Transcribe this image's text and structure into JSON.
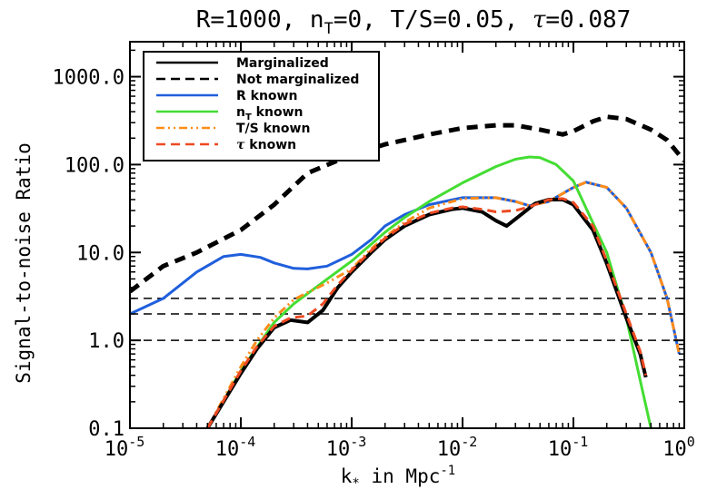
{
  "chart_data": {
    "type": "line",
    "title": "R=1000, nT=0, T/S=0.05, τ=0.087",
    "title_parts": {
      "p1": "R=1000, n",
      "sub": "T",
      "p2": "=0, T/S=0.05, ",
      "tau": "τ",
      "p3": "=0.087"
    },
    "xlabel": "k",
    "xlabel_sub": "*",
    "xlabel_rest": " in Mpc",
    "xlabel_sup": "-1",
    "ylabel": "Signal-to-noise Ratio",
    "xscale": "log",
    "yscale": "log",
    "xlim": [
      1e-05,
      1
    ],
    "ylim": [
      0.1,
      2500
    ],
    "x_ticks": [
      {
        "value": 1e-05,
        "base": "10",
        "exp": "-5"
      },
      {
        "value": 0.0001,
        "base": "10",
        "exp": "-4"
      },
      {
        "value": 0.001,
        "base": "10",
        "exp": "-3"
      },
      {
        "value": 0.01,
        "base": "10",
        "exp": "-2"
      },
      {
        "value": 0.1,
        "base": "10",
        "exp": "-1"
      },
      {
        "value": 1,
        "base": "10",
        "exp": "0"
      }
    ],
    "y_ticks": [
      {
        "value": 0.1,
        "label": "0.1"
      },
      {
        "value": 1,
        "label": "1.0"
      },
      {
        "value": 10,
        "label": "10.0"
      },
      {
        "value": 100,
        "label": "100.0"
      },
      {
        "value": 1000,
        "label": "1000.0"
      }
    ],
    "hlines": [
      1,
      2,
      3
    ],
    "legend_position": "top-left",
    "series": [
      {
        "name": "Marginalized",
        "color": "#000000",
        "dash": "solid",
        "width": 4,
        "x": [
          5e-05,
          0.0001,
          0.00014,
          0.0002,
          0.00028,
          0.0004,
          0.00055,
          0.00075,
          0.001,
          0.0015,
          0.002,
          0.003,
          0.005,
          0.008,
          0.01,
          0.015,
          0.02,
          0.025,
          0.03,
          0.045,
          0.06,
          0.08,
          0.1,
          0.15,
          0.2,
          0.3,
          0.4,
          0.45
        ],
        "values": [
          0.1,
          0.42,
          0.8,
          1.4,
          1.7,
          1.6,
          2.2,
          4.0,
          6.0,
          10.0,
          14.0,
          20.0,
          27.0,
          31.0,
          32.0,
          29.0,
          23.0,
          20.0,
          24.0,
          36.0,
          40.0,
          40.0,
          35.0,
          18.0,
          7.5,
          1.8,
          0.7,
          0.38
        ]
      },
      {
        "name": "Not marginalized",
        "color": "#000000",
        "dash": "dashed",
        "width": 5,
        "x": [
          1e-05,
          2e-05,
          4e-05,
          0.0001,
          0.0002,
          0.0004,
          0.001,
          0.002,
          0.005,
          0.01,
          0.02,
          0.03,
          0.05,
          0.08,
          0.1,
          0.15,
          0.2,
          0.3,
          0.5,
          0.7,
          1.0
        ],
        "values": [
          3.6,
          7.0,
          10.0,
          18.0,
          35.0,
          80.0,
          130.0,
          170.0,
          220.0,
          260.0,
          280.0,
          280.0,
          250.0,
          220.0,
          240.0,
          310.0,
          350.0,
          330.0,
          250.0,
          190.0,
          110.0
        ]
      },
      {
        "name": "R known",
        "color": "#1f5fdc",
        "dash": "solid",
        "width": 3,
        "x": [
          1e-05,
          2e-05,
          4e-05,
          7e-05,
          0.0001,
          0.00015,
          0.0002,
          0.0003,
          0.0004,
          0.0006,
          0.001,
          0.0015,
          0.002,
          0.003,
          0.005,
          0.01,
          0.02,
          0.03,
          0.04,
          0.06,
          0.1,
          0.13,
          0.2,
          0.3,
          0.5,
          0.7,
          0.9
        ],
        "values": [
          2.0,
          3.0,
          6.0,
          9.0,
          9.5,
          8.8,
          7.6,
          6.6,
          6.5,
          7.0,
          9.5,
          14.0,
          20.0,
          27.0,
          35.0,
          42.0,
          42.0,
          38.0,
          34.0,
          38.0,
          55.0,
          63.0,
          55.0,
          32.0,
          10.0,
          3.0,
          0.7
        ]
      },
      {
        "name": "nT known",
        "legend_parts": {
          "p1": "n",
          "sub": "T",
          "p2": " known"
        },
        "color": "#44dd33",
        "dash": "solid",
        "width": 3,
        "x": [
          5e-05,
          0.0001,
          0.00015,
          0.0002,
          0.0003,
          0.0005,
          0.001,
          0.002,
          0.003,
          0.005,
          0.01,
          0.02,
          0.03,
          0.04,
          0.05,
          0.07,
          0.1,
          0.2,
          0.3,
          0.4,
          0.5
        ],
        "values": [
          0.1,
          0.45,
          0.95,
          1.6,
          2.6,
          4.2,
          8.0,
          17.0,
          25.0,
          38.0,
          62.0,
          95.0,
          115.0,
          122.0,
          120.0,
          100.0,
          65.0,
          10.0,
          1.8,
          0.35,
          0.1
        ]
      },
      {
        "name": "T/S known",
        "color": "#ff8c1a",
        "dash": "dash-dot-dot",
        "width": 3,
        "x": [
          5e-05,
          0.0001,
          0.00014,
          0.0002,
          0.0003,
          0.0004,
          0.0006,
          0.001,
          0.0015,
          0.002,
          0.003,
          0.005,
          0.01,
          0.02,
          0.03,
          0.04,
          0.06,
          0.1,
          0.13,
          0.2,
          0.3,
          0.5,
          0.7,
          0.9
        ],
        "values": [
          0.1,
          0.5,
          1.0,
          1.8,
          2.9,
          3.5,
          4.5,
          6.5,
          11.0,
          15.0,
          22.0,
          32.0,
          41.0,
          42.0,
          38.0,
          34.0,
          38.0,
          55.0,
          63.0,
          55.0,
          32.0,
          10.0,
          3.0,
          0.7
        ]
      },
      {
        "name": "τ known",
        "legend_parts": {
          "p1": "",
          "tau": "τ",
          "p2": " known"
        },
        "color": "#ee4a22",
        "dash": "dashed",
        "width": 3,
        "x": [
          5e-05,
          0.0001,
          0.00014,
          0.0002,
          0.00028,
          0.0004,
          0.00055,
          0.00075,
          0.001,
          0.0015,
          0.002,
          0.003,
          0.005,
          0.008,
          0.01,
          0.015,
          0.02,
          0.03,
          0.04,
          0.06,
          0.08,
          0.1,
          0.15,
          0.2,
          0.3,
          0.4,
          0.45
        ],
        "values": [
          0.1,
          0.45,
          0.85,
          1.45,
          1.8,
          1.9,
          2.6,
          4.3,
          6.3,
          10.5,
          14.5,
          21.0,
          28.0,
          32.0,
          33.0,
          31.0,
          29.0,
          30.0,
          33.0,
          40.0,
          41.0,
          37.0,
          20.0,
          8.0,
          2.0,
          0.75,
          0.4
        ]
      }
    ]
  }
}
